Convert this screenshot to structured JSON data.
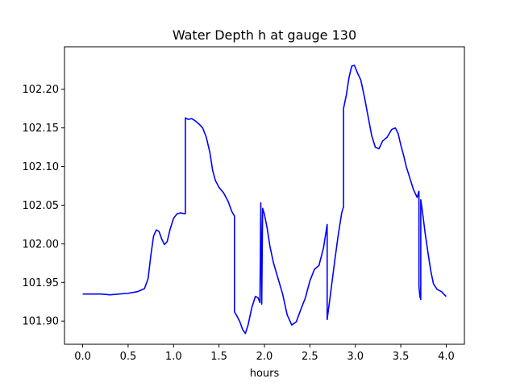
{
  "chart_data": {
    "type": "line",
    "title": "Water Depth h at gauge 130",
    "xlabel": "hours",
    "ylabel": "",
    "xlim": [
      -0.2,
      4.2
    ],
    "ylim": [
      101.87,
      102.255
    ],
    "xticks": [
      0.0,
      0.5,
      1.0,
      1.5,
      2.0,
      2.5,
      3.0,
      3.5,
      4.0
    ],
    "xtick_labels": [
      "0.0",
      "0.5",
      "1.0",
      "1.5",
      "2.0",
      "2.5",
      "3.0",
      "3.5",
      "4.0"
    ],
    "yticks": [
      101.9,
      101.95,
      102.0,
      102.05,
      102.1,
      102.15,
      102.2
    ],
    "ytick_labels": [
      "101.90",
      "101.95",
      "102.00",
      "102.05",
      "102.10",
      "102.15",
      "102.20"
    ],
    "grid": false,
    "series": [
      {
        "color": "#0000ff",
        "x": [
          0.0,
          0.1,
          0.2,
          0.3,
          0.4,
          0.5,
          0.6,
          0.68,
          0.72,
          0.75,
          0.78,
          0.81,
          0.84,
          0.87,
          0.9,
          0.93,
          0.96,
          1.0,
          1.04,
          1.08,
          1.12,
          1.13,
          1.13,
          1.16,
          1.2,
          1.24,
          1.28,
          1.32,
          1.36,
          1.4,
          1.43,
          1.46,
          1.5,
          1.55,
          1.6,
          1.64,
          1.67,
          1.67,
          1.7,
          1.73,
          1.76,
          1.79,
          1.82,
          1.86,
          1.9,
          1.93,
          1.95,
          1.96,
          1.97,
          1.98,
          1.98,
          2.0,
          2.03,
          2.06,
          2.1,
          2.15,
          2.2,
          2.25,
          2.3,
          2.35,
          2.4,
          2.45,
          2.5,
          2.55,
          2.6,
          2.65,
          2.69,
          2.69,
          2.73,
          2.77,
          2.81,
          2.85,
          2.87,
          2.87,
          2.9,
          2.93,
          2.96,
          2.99,
          3.02,
          3.06,
          3.1,
          3.14,
          3.18,
          3.22,
          3.26,
          3.3,
          3.35,
          3.4,
          3.44,
          3.47,
          3.5,
          3.53,
          3.56,
          3.6,
          3.64,
          3.68,
          3.7,
          3.7,
          3.71,
          3.72,
          3.72,
          3.74,
          3.77,
          3.8,
          3.83,
          3.86,
          3.9,
          3.95,
          3.98,
          4.0
        ],
        "y": [
          101.935,
          101.935,
          101.935,
          101.934,
          101.935,
          101.936,
          101.938,
          101.942,
          101.955,
          101.985,
          102.01,
          102.018,
          102.016,
          102.006,
          101.999,
          102.003,
          102.018,
          102.033,
          102.039,
          102.04,
          102.039,
          102.039,
          102.163,
          102.161,
          102.162,
          102.159,
          102.155,
          102.15,
          102.138,
          102.118,
          102.095,
          102.082,
          102.073,
          102.066,
          102.055,
          102.042,
          102.036,
          101.912,
          101.906,
          101.899,
          101.889,
          101.884,
          101.895,
          101.917,
          101.932,
          101.93,
          101.924,
          102.053,
          101.922,
          102.046,
          102.046,
          102.038,
          102.02,
          101.997,
          101.975,
          101.955,
          101.935,
          101.908,
          101.895,
          101.899,
          101.915,
          101.93,
          101.952,
          101.967,
          101.972,
          101.995,
          102.025,
          101.902,
          101.938,
          101.975,
          102.01,
          102.04,
          102.048,
          102.175,
          102.192,
          102.215,
          102.23,
          102.231,
          102.222,
          102.212,
          102.19,
          102.165,
          102.14,
          102.125,
          102.123,
          102.133,
          102.138,
          102.148,
          102.15,
          102.143,
          102.128,
          102.115,
          102.1,
          102.085,
          102.07,
          102.06,
          102.068,
          101.945,
          101.932,
          101.928,
          102.057,
          102.04,
          102.012,
          101.988,
          101.965,
          101.948,
          101.941,
          101.938,
          101.934,
          101.932
        ]
      }
    ]
  }
}
